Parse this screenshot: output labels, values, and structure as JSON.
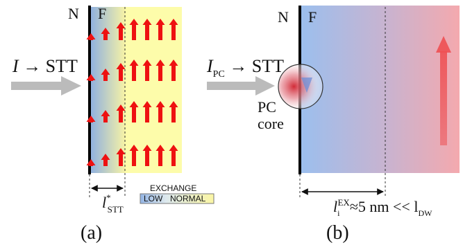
{
  "panel_a": {
    "n_label": "N",
    "f_label": "F",
    "input_label": "I → STT",
    "length_main": "l",
    "length_sup": "*",
    "length_sub": "STT",
    "legend_title": "EXCHANGE",
    "legend_low": "LOW",
    "legend_normal": "NORMAL",
    "caption": "(a)",
    "colors": {
      "gradient_start": "#8fb0e0",
      "exchange_zone": "#fdfcaa",
      "arrow": "#ee1111",
      "input_arrow": "#bbbbbb"
    }
  },
  "panel_b": {
    "n_label": "N",
    "f_label": "F",
    "input_main": "I",
    "input_sub": "PC",
    "input_tail": " → STT",
    "core_line1": "PC",
    "core_line2": "core",
    "length_main": "l",
    "length_sub": "i",
    "length_sup": "EX",
    "length_mid": "≈5 nm << l",
    "length_sub2": "DW",
    "caption": "(b)",
    "colors": {
      "gradient_start": "#9bbfee",
      "gradient_end": "#f4a9ae",
      "arrow": "#ee4f52"
    }
  }
}
